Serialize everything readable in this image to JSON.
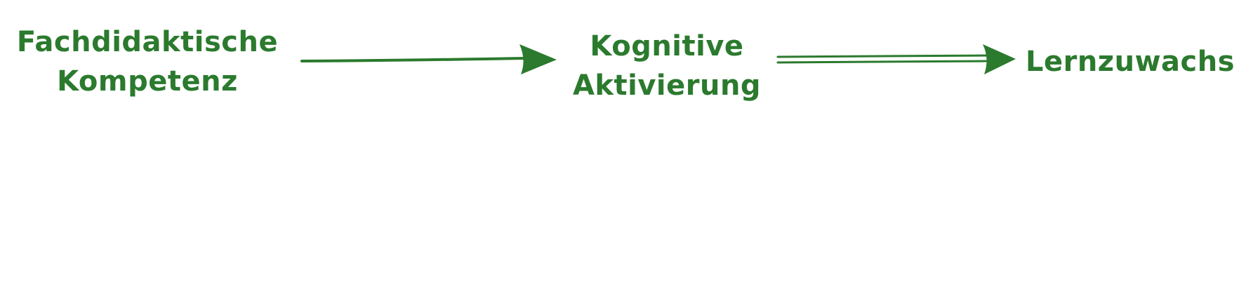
{
  "diagram": {
    "accent_color": "#2b7a2e",
    "nodes": [
      {
        "line1": "Fachdidaktische",
        "line2": "Kompetenz"
      },
      {
        "line1": "Kognitive",
        "line2": "Aktivierung"
      },
      {
        "line1": "Lernzuwachs"
      }
    ],
    "edges": [
      {
        "from": "Fachdidaktische Kompetenz",
        "to": "Kognitive Aktivierung",
        "style": "single-line"
      },
      {
        "from": "Kognitive Aktivierung",
        "to": "Lernzuwachs",
        "style": "double-line"
      }
    ]
  }
}
